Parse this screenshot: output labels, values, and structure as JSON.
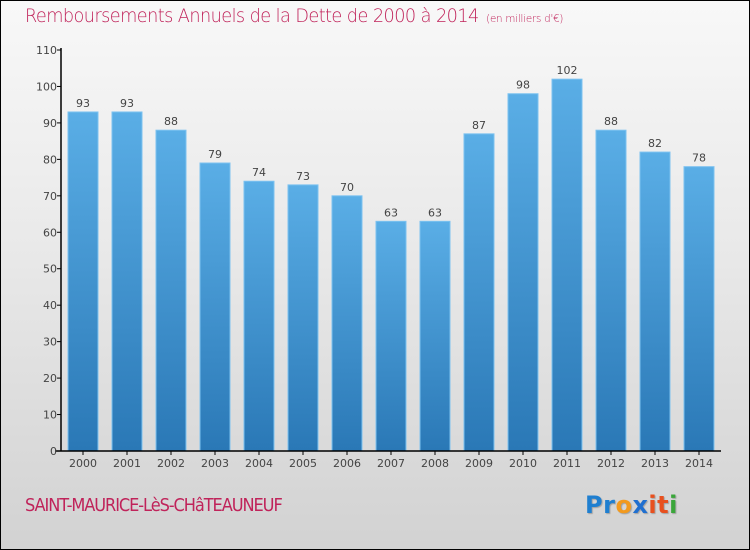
{
  "header": {
    "title": "Remboursements Annuels de la Dette de 2000 à 2014",
    "subtitle": "(en milliers d'€)"
  },
  "footer": {
    "city": "SAINT-MAURICE-LèS-CHâTEAUNEUF",
    "logo": {
      "letters": [
        {
          "char": "P",
          "color": "#1f7fd0"
        },
        {
          "char": "r",
          "color": "#1f7fd0"
        },
        {
          "char": "o",
          "color": "#f29a1e"
        },
        {
          "char": "x",
          "color": "#1f6fd0"
        },
        {
          "char": "i",
          "color": "#e8501e"
        },
        {
          "char": "t",
          "color": "#e8501e"
        },
        {
          "char": "i",
          "color": "#3aa63a"
        }
      ]
    }
  },
  "colors": {
    "title": "#c0235a",
    "bar_top": "#5aaee6",
    "bar_bottom": "#2a78b6",
    "bar_edge": "#7cc2f0",
    "axis": "#000000",
    "label": "#444444"
  },
  "chart_data": {
    "type": "bar",
    "title": "Remboursements Annuels de la Dette de 2000 à 2014",
    "subtitle": "(en milliers d'€)",
    "xlabel": "",
    "ylabel": "",
    "categories": [
      "2000",
      "2001",
      "2002",
      "2003",
      "2004",
      "2005",
      "2006",
      "2007",
      "2008",
      "2009",
      "2010",
      "2011",
      "2012",
      "2013",
      "2014"
    ],
    "values": [
      93,
      93,
      88,
      79,
      74,
      73,
      70,
      63,
      63,
      87,
      98,
      102,
      88,
      82,
      78
    ],
    "ylim": [
      0,
      110
    ],
    "yticks": [
      0,
      10,
      20,
      30,
      40,
      50,
      60,
      70,
      80,
      90,
      100,
      110
    ],
    "grid": false,
    "legend": "none",
    "data_labels": true
  }
}
